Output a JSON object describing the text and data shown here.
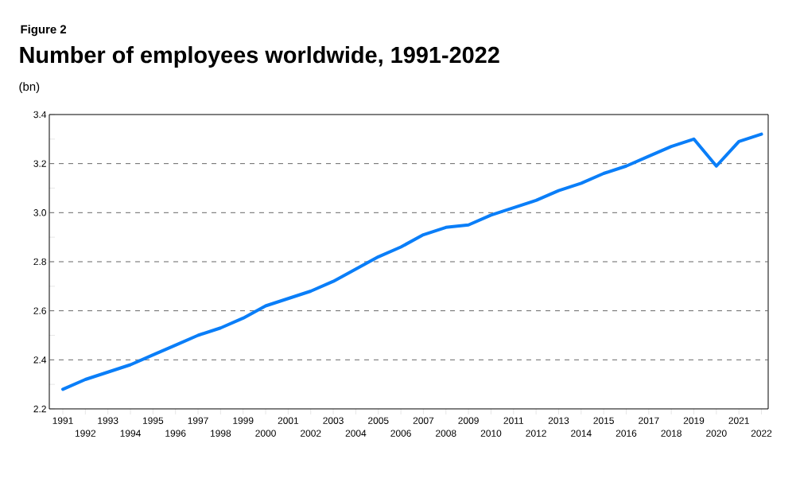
{
  "chart_data": {
    "type": "line",
    "title": "Number of employees worldwide, 1991-2022",
    "ylabel": "(bn)",
    "annotations": [
      "Figure 2"
    ],
    "categories": [
      "1991",
      "1992",
      "1993",
      "1994",
      "1995",
      "1996",
      "1997",
      "1998",
      "1999",
      "2000",
      "2001",
      "2002",
      "2003",
      "2004",
      "2005",
      "2006",
      "2007",
      "2008",
      "2009",
      "2010",
      "2011",
      "2012",
      "2013",
      "2014",
      "2015",
      "2016",
      "2017",
      "2018",
      "2019",
      "2020",
      "2021",
      "2022"
    ],
    "values": [
      2.28,
      2.32,
      2.35,
      2.38,
      2.42,
      2.46,
      2.5,
      2.53,
      2.57,
      2.62,
      2.65,
      2.68,
      2.72,
      2.77,
      2.82,
      2.86,
      2.91,
      2.94,
      2.95,
      2.99,
      3.02,
      3.05,
      3.09,
      3.12,
      3.16,
      3.19,
      3.23,
      3.27,
      3.3,
      3.19,
      3.29,
      3.32
    ],
    "color": "#0a7ef8",
    "ylim": [
      2.2,
      3.4
    ],
    "yticks": [
      {
        "value": 2.2,
        "label": "2.2"
      },
      {
        "value": 2.3,
        "label": null
      },
      {
        "value": 2.4,
        "label": "2.4"
      },
      {
        "value": 2.5,
        "label": null
      },
      {
        "value": 2.6,
        "label": "2.6"
      },
      {
        "value": 2.7,
        "label": null
      },
      {
        "value": 2.8,
        "label": "2.8"
      },
      {
        "value": 2.9,
        "label": null
      },
      {
        "value": 3.0,
        "label": "3.0"
      },
      {
        "value": 3.1,
        "label": null
      },
      {
        "value": 3.2,
        "label": "3.2"
      },
      {
        "value": 3.3,
        "label": null
      },
      {
        "value": 3.4,
        "label": "3.4"
      }
    ],
    "grid": "y"
  }
}
